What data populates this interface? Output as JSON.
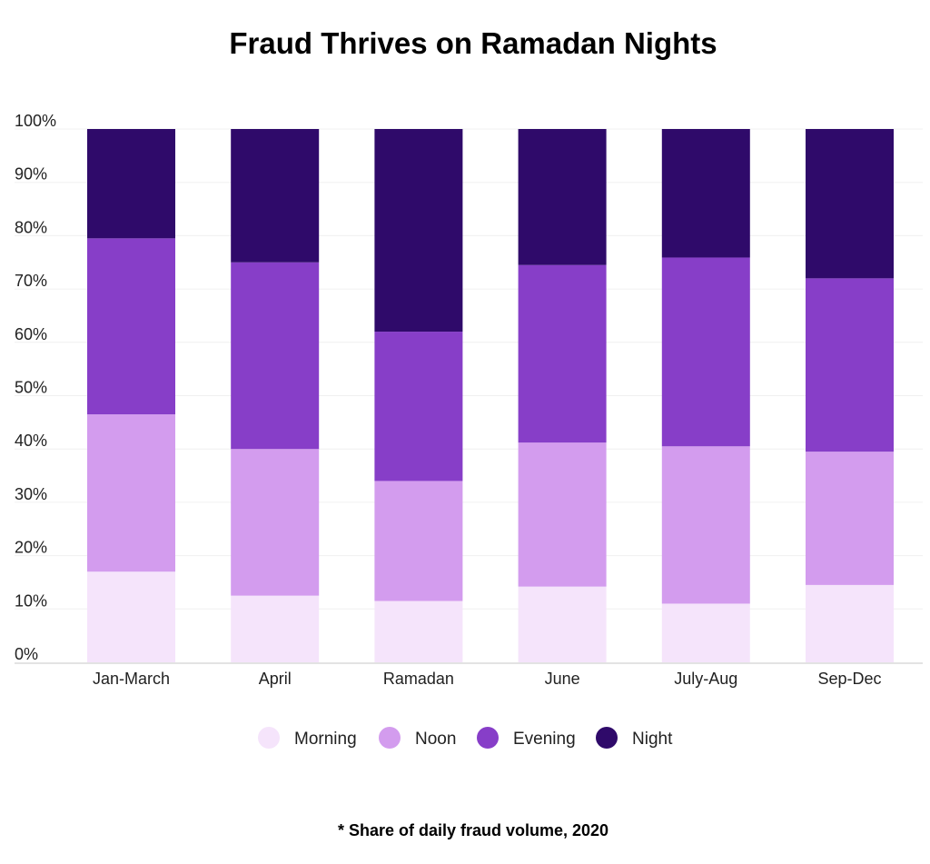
{
  "chart_data": {
    "type": "bar",
    "stacked": true,
    "title": "Fraud Thrives on Ramadan Nights",
    "footnote": "* Share of daily fraud volume, 2020",
    "categories": [
      "Jan-March",
      "April",
      "Ramadan",
      "June",
      "July-Aug",
      "Sep-Dec"
    ],
    "ylim": [
      0,
      100
    ],
    "yticks": [
      "0%",
      "10%",
      "20%",
      "30%",
      "40%",
      "50%",
      "60%",
      "70%",
      "80%",
      "90%",
      "100%"
    ],
    "grid": true,
    "legend_position": "bottom",
    "series": [
      {
        "name": "Morning",
        "color": "#f5e4fb",
        "values": [
          17,
          12.5,
          11.5,
          14.2,
          11,
          14.5
        ]
      },
      {
        "name": "Noon",
        "color": "#d39cee",
        "values": [
          29.5,
          27.5,
          22.5,
          27,
          29.5,
          25
        ]
      },
      {
        "name": "Evening",
        "color": "#873ec8",
        "values": [
          33,
          35,
          28,
          33.3,
          35.4,
          32.5
        ]
      },
      {
        "name": "Night",
        "color": "#2f0a6a",
        "values": [
          20.5,
          25,
          38,
          25.5,
          24.1,
          28
        ]
      }
    ]
  }
}
